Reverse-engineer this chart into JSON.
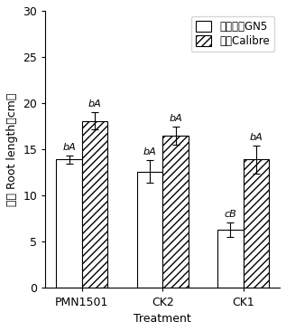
{
  "groups": [
    "PMN1501",
    "CK2",
    "CK1"
  ],
  "series": [
    {
      "label": "紫花苹蓿GN5",
      "values": [
        13.9,
        12.6,
        6.3
      ],
      "errors": [
        0.4,
        1.2,
        0.8
      ],
      "hatch": "",
      "facecolor": "white",
      "edgecolor": "black"
    },
    {
      "label": "燕麦Calibre",
      "values": [
        18.1,
        16.5,
        13.9
      ],
      "errors": [
        0.9,
        1.0,
        1.5
      ],
      "hatch": "////",
      "facecolor": "white",
      "edgecolor": "black"
    }
  ],
  "bar_labels": [
    [
      "bA",
      "bA"
    ],
    [
      "bA",
      "bA"
    ],
    [
      "cB",
      "bA"
    ]
  ],
  "xlabel": "Treatment",
  "ylabel_cn": "根长",
  "ylabel_en": " Root length（cm）",
  "ylim": [
    0,
    30
  ],
  "yticks": [
    0,
    5,
    10,
    15,
    20,
    25,
    30
  ],
  "bar_width": 0.32,
  "legend_loc": "upper right",
  "axis_fontsize": 9,
  "tick_fontsize": 9,
  "label_fontsize": 8,
  "legend_fontsize": 8.5
}
